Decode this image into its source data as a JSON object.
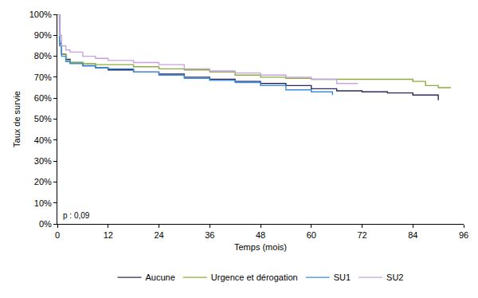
{
  "chart_data": {
    "type": "line",
    "line_style": "step",
    "x_label": "Temps (mois)",
    "y_label": "Taux de survie",
    "annotations": [
      {
        "text": "p : 0,09"
      }
    ],
    "xlim": [
      0,
      96
    ],
    "xticks": [
      0,
      12,
      24,
      36,
      48,
      60,
      72,
      84,
      96
    ],
    "ylim": [
      0,
      100
    ],
    "yticks": [
      {
        "value": 0,
        "label": "0%"
      },
      {
        "value": 10,
        "label": "10%"
      },
      {
        "value": 20,
        "label": "20%"
      },
      {
        "value": 30,
        "label": "30%"
      },
      {
        "value": 40,
        "label": "40%"
      },
      {
        "value": 50,
        "label": "50%"
      },
      {
        "value": 60,
        "label": "60%"
      },
      {
        "value": 70,
        "label": "70%"
      },
      {
        "value": 80,
        "label": "80%"
      },
      {
        "value": 90,
        "label": "90%"
      },
      {
        "value": 100,
        "label": "100%"
      }
    ],
    "grid": false,
    "legend": "bottom",
    "series": [
      {
        "name": "Aucune",
        "color": "#2b2a5c",
        "x": [
          0,
          0.5,
          1,
          2,
          3,
          6,
          9,
          12,
          18,
          24,
          30,
          36,
          42,
          48,
          54,
          60,
          66,
          72,
          78,
          84,
          90
        ],
        "values": [
          100,
          86,
          81,
          78.5,
          77,
          75.5,
          74.5,
          73.5,
          72.5,
          71.5,
          70,
          69,
          68,
          67,
          66,
          64.5,
          63.5,
          63,
          62.5,
          61.5,
          59
        ]
      },
      {
        "name": "Urgence et dérogation",
        "color": "#8fad3c",
        "x": [
          0,
          0.5,
          1,
          2,
          3,
          6,
          9,
          12,
          18,
          24,
          30,
          36,
          42,
          48,
          54,
          60,
          66,
          72,
          78,
          84,
          87,
          90,
          93
        ],
        "values": [
          100,
          87,
          81,
          78,
          77,
          76.5,
          76,
          76,
          75,
          74,
          73.5,
          72.5,
          71,
          70,
          69.5,
          69,
          69,
          69,
          69,
          68,
          66,
          65,
          65
        ]
      },
      {
        "name": "SU1",
        "color": "#3a8dde",
        "x": [
          0,
          0.5,
          1,
          2,
          3,
          6,
          9,
          12,
          18,
          24,
          30,
          36,
          42,
          48,
          54,
          60,
          65
        ],
        "values": [
          100,
          85,
          80,
          77.5,
          76.5,
          75.5,
          74.5,
          74,
          72.5,
          71,
          69.5,
          68.5,
          67.5,
          66,
          64,
          63,
          61.5
        ]
      },
      {
        "name": "SU2",
        "color": "#c8a2e0",
        "x": [
          0,
          0.5,
          1,
          2,
          3,
          6,
          9,
          12,
          18,
          24,
          30,
          36,
          42,
          48,
          54,
          60,
          66,
          71
        ],
        "values": [
          100,
          90,
          85,
          83,
          82,
          80,
          79,
          78,
          77,
          76,
          74,
          73,
          72,
          71,
          70,
          69,
          67,
          67
        ]
      }
    ]
  }
}
